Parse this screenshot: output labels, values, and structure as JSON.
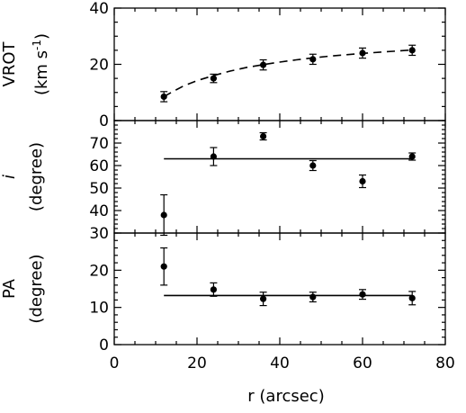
{
  "chart_data": [
    {
      "type": "scatter",
      "panel": "top",
      "ylabel_main": "VROT",
      "ylabel_unit": "(km s",
      "ylabel_unit_sup": "-1",
      "ylabel_unit_close": ")",
      "ylim": [
        0,
        40
      ],
      "yticks_major": [
        0,
        20,
        40
      ],
      "yticks_major_labels": [
        "0",
        "20",
        "40"
      ],
      "yticks_minor_step": 5,
      "model_style": "dashed",
      "x": [
        12,
        24,
        36,
        48,
        60,
        72
      ],
      "y": [
        8.5,
        15.0,
        19.8,
        21.8,
        24.0,
        25.0
      ],
      "yerr": [
        1.8,
        1.5,
        1.8,
        1.8,
        1.8,
        1.8
      ],
      "model_x": [
        12,
        14,
        17,
        20,
        24,
        28,
        32,
        36,
        40,
        44,
        48,
        52,
        56,
        60,
        64,
        68,
        72
      ],
      "model_y": [
        8.5,
        10.2,
        12.5,
        14.2,
        16.0,
        17.6,
        18.9,
        19.9,
        20.8,
        21.6,
        22.3,
        22.9,
        23.4,
        23.9,
        24.3,
        24.7,
        25.1
      ]
    },
    {
      "type": "scatter",
      "panel": "middle",
      "ylabel_main": "i",
      "ylabel_unit": "(degree)",
      "ylim": [
        30,
        80
      ],
      "yticks_major": [
        30,
        40,
        50,
        60,
        70
      ],
      "yticks_major_labels": [
        "30",
        "40",
        "50",
        "60",
        "70"
      ],
      "yticks_minor_step": 2,
      "model_style": "solid",
      "x": [
        12,
        24,
        36,
        48,
        60,
        72
      ],
      "y": [
        38,
        64,
        73,
        60,
        53,
        64
      ],
      "yerr": [
        9,
        4,
        1.6,
        2.2,
        2.8,
        1.6
      ],
      "model_x": [
        12,
        72
      ],
      "model_y": [
        63,
        63
      ]
    },
    {
      "type": "scatter",
      "panel": "bottom",
      "ylabel_main": "PA",
      "ylabel_unit": "(degree)",
      "ylim": [
        0,
        30
      ],
      "yticks_major": [
        0,
        10,
        20
      ],
      "yticks_major_labels": [
        "0",
        "10",
        "20"
      ],
      "yticks_minor_step": 2,
      "model_style": "solid",
      "x": [
        12,
        24,
        36,
        48,
        60,
        72
      ],
      "y": [
        21,
        14.8,
        12.3,
        12.8,
        13.5,
        12.5
      ],
      "yerr": [
        5,
        1.8,
        1.8,
        1.3,
        1.3,
        1.8
      ],
      "model_x": [
        12,
        72
      ],
      "model_y": [
        13.2,
        13.2
      ]
    }
  ],
  "x_axis": {
    "xlabel": "r (arcsec)",
    "xlim": [
      0,
      80
    ],
    "xticks_major": [
      0,
      20,
      40,
      60,
      80
    ],
    "xticks_major_labels": [
      "0",
      "20",
      "40",
      "60",
      "80"
    ],
    "xticks_minor_step": 5
  }
}
